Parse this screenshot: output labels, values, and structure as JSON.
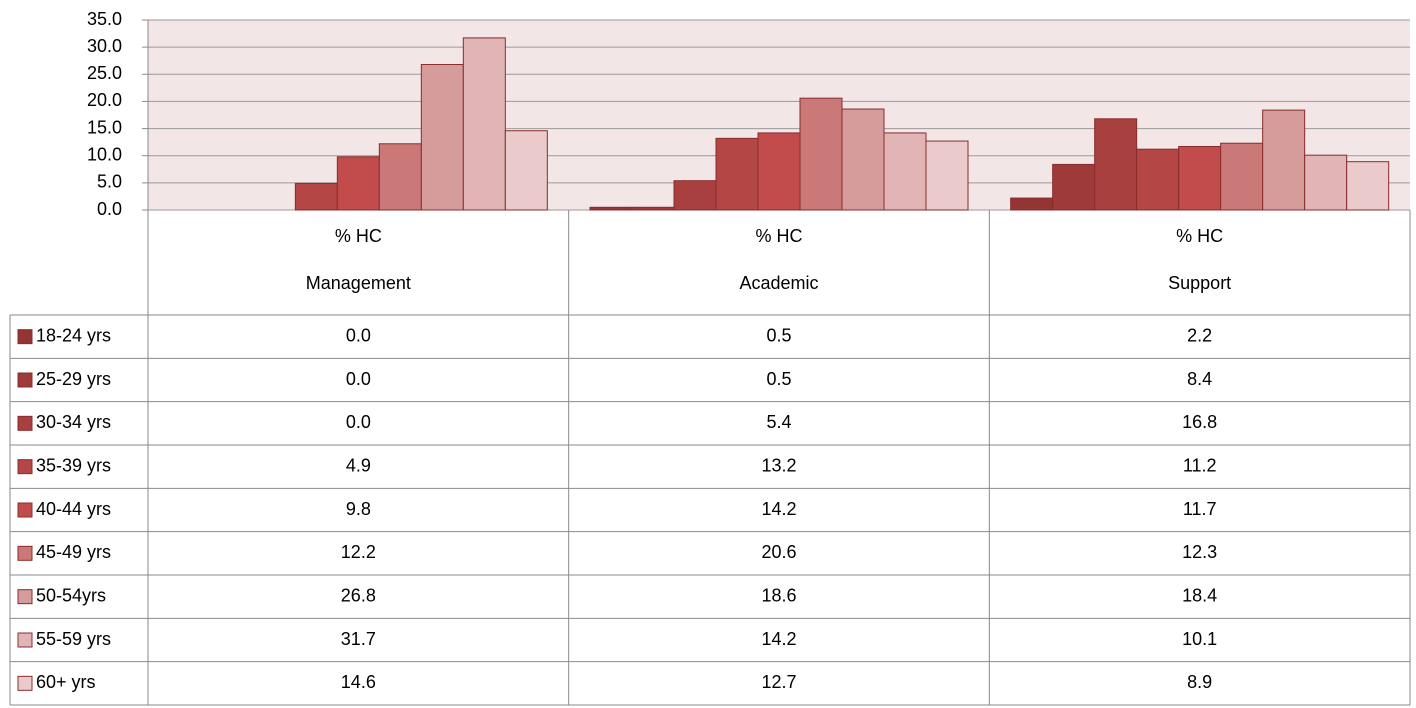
{
  "chart_data": {
    "type": "bar",
    "category_groups": [
      "% HC",
      "% HC",
      "% HC"
    ],
    "categories": [
      "Management",
      "Academic",
      "Support"
    ],
    "ylim": [
      0,
      35
    ],
    "yticks": [
      {
        "value": 0,
        "label": "0.0"
      },
      {
        "value": 5,
        "label": "5.0"
      },
      {
        "value": 10,
        "label": "10.0"
      },
      {
        "value": 15,
        "label": "15.0"
      },
      {
        "value": 20,
        "label": "20.0"
      },
      {
        "value": 25,
        "label": "25.0"
      },
      {
        "value": 30,
        "label": "30.0"
      },
      {
        "value": 35,
        "label": "35.0"
      }
    ],
    "grid": true,
    "series": [
      {
        "name": "18-24 yrs",
        "color": "#943535",
        "values": [
          0,
          0.5,
          2.2
        ],
        "value_labels": [
          "0.0",
          "0.5",
          "2.2"
        ]
      },
      {
        "name": "25-29 yrs",
        "color": "#9e3a3a",
        "values": [
          0,
          0.5,
          8.4
        ],
        "value_labels": [
          "0.0",
          "0.5",
          "8.4"
        ]
      },
      {
        "name": "30-34 yrs",
        "color": "#a84040",
        "values": [
          0,
          5.4,
          16.8
        ],
        "value_labels": [
          "0.0",
          "5.4",
          "16.8"
        ]
      },
      {
        "name": "35-39 yrs",
        "color": "#b54646",
        "values": [
          4.9,
          13.2,
          11.2
        ],
        "value_labels": [
          "4.9",
          "13.2",
          "11.2"
        ]
      },
      {
        "name": "40-44 yrs",
        "color": "#c24c4c",
        "values": [
          9.8,
          14.2,
          11.7
        ],
        "value_labels": [
          "9.8",
          "14.2",
          "11.7"
        ]
      },
      {
        "name": "45-49 yrs",
        "color": "#cb7878",
        "values": [
          12.2,
          20.6,
          12.3
        ],
        "value_labels": [
          "12.2",
          "20.6",
          "12.3"
        ]
      },
      {
        "name": "50-54yrs",
        "color": "#d69b9b",
        "values": [
          26.8,
          18.6,
          18.4
        ],
        "value_labels": [
          "26.8",
          "18.6",
          "18.4"
        ]
      },
      {
        "name": "55-59 yrs",
        "color": "#e1b5b5",
        "values": [
          31.7,
          14.2,
          10.1
        ],
        "value_labels": [
          "31.7",
          "14.2",
          "10.1"
        ]
      },
      {
        "name": "60+ yrs",
        "color": "#eacaca",
        "values": [
          14.6,
          12.7,
          8.9
        ],
        "value_labels": [
          "14.6",
          "12.7",
          "8.9"
        ]
      }
    ]
  }
}
